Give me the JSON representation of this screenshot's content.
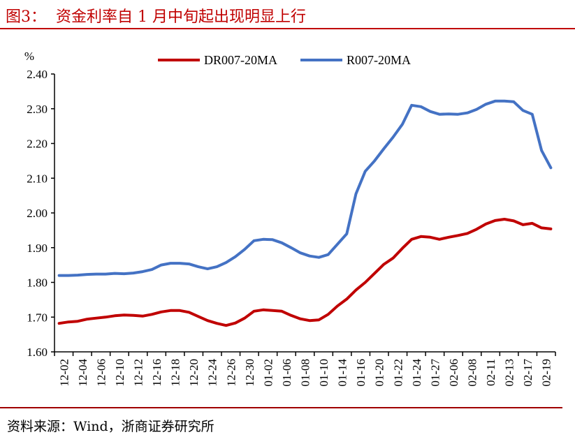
{
  "title": "图3：  资金利率自 1 月中旬起出现明显上行",
  "source": "资料来源：Wind，浙商证券研究所",
  "colors": {
    "title": "#c00000",
    "DR007-20MA": "#c00000",
    "R007-20MA": "#4472c4"
  },
  "chart_data": {
    "type": "line",
    "title": "",
    "ylabel": "%",
    "xlabel": "",
    "ylim": [
      1.6,
      2.4
    ],
    "yticks": [
      "1.60",
      "1.70",
      "1.80",
      "1.90",
      "2.00",
      "2.10",
      "2.20",
      "2.30",
      "2.40"
    ],
    "grid": false,
    "legend_position": "top",
    "x_tick_labels": [
      "12-02",
      "12-04",
      "12-06",
      "12-10",
      "12-12",
      "12-16",
      "12-18",
      "12-20",
      "12-24",
      "12-26",
      "12-30",
      "01-02",
      "01-06",
      "01-08",
      "01-10",
      "01-14",
      "01-16",
      "01-20",
      "01-22",
      "01-24",
      "01-27",
      "02-06",
      "02-08",
      "02-11",
      "02-13",
      "02-17",
      "02-19"
    ],
    "series": [
      {
        "name": "DR007-20MA",
        "values": [
          1.682,
          1.686,
          1.688,
          1.694,
          1.697,
          1.7,
          1.704,
          1.706,
          1.705,
          1.703,
          1.708,
          1.715,
          1.719,
          1.719,
          1.714,
          1.702,
          1.69,
          1.682,
          1.676,
          1.683,
          1.697,
          1.717,
          1.721,
          1.719,
          1.717,
          1.705,
          1.695,
          1.69,
          1.692,
          1.708,
          1.732,
          1.752,
          1.778,
          1.8,
          1.826,
          1.852,
          1.87,
          1.898,
          1.924,
          1.932,
          1.93,
          1.924,
          1.93,
          1.935,
          1.941,
          1.953,
          1.968,
          1.978,
          1.982,
          1.977,
          1.966,
          1.97,
          1.957,
          1.954
        ]
      },
      {
        "name": "R007-20MA",
        "values": [
          1.82,
          1.82,
          1.821,
          1.823,
          1.824,
          1.824,
          1.826,
          1.825,
          1.827,
          1.831,
          1.837,
          1.85,
          1.855,
          1.855,
          1.853,
          1.845,
          1.839,
          1.845,
          1.857,
          1.874,
          1.895,
          1.92,
          1.924,
          1.923,
          1.914,
          1.9,
          1.885,
          1.876,
          1.872,
          1.88,
          1.91,
          1.94,
          2.055,
          2.12,
          2.15,
          2.185,
          2.218,
          2.255,
          2.31,
          2.306,
          2.292,
          2.284,
          2.285,
          2.284,
          2.288,
          2.298,
          2.313,
          2.322,
          2.322,
          2.32,
          2.295,
          2.284,
          2.18,
          2.13
        ]
      }
    ]
  }
}
